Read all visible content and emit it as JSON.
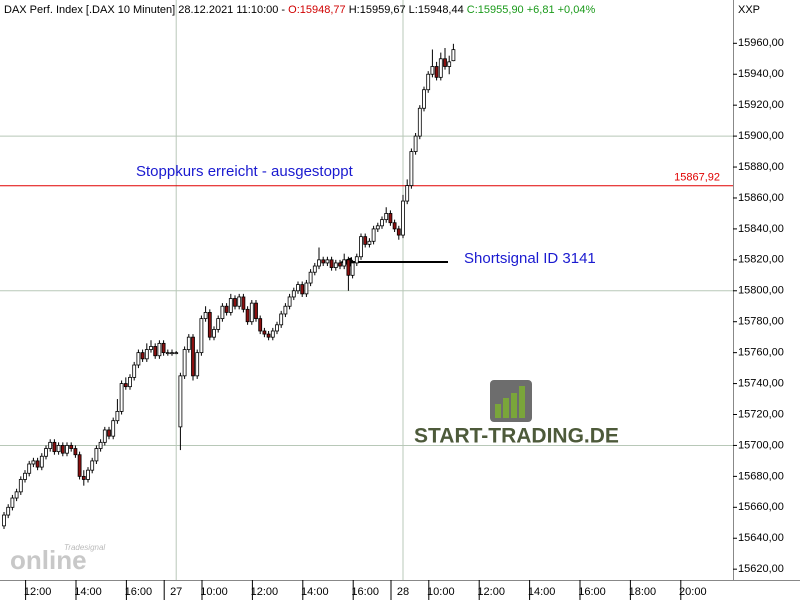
{
  "chart_data": {
    "type": "candlestick",
    "header": {
      "text": "DAX Perf. Index [.DAX  10 Minuten] 28.12.2021 11:10:00 -",
      "open": "O:15948,77",
      "high": "H:15959,67",
      "low": "L:15948,44",
      "change": "C:15955,90 +6,81 +0,04%"
    },
    "axis_title": "XXP",
    "annotations": {
      "stop": "Stoppkurs erreicht - ausgestoppt",
      "signal": "Shortsignal ID 3141"
    },
    "logo": "START-TRADING.DE",
    "watermark": {
      "brand": "Tradesignal",
      "word": "online"
    },
    "stop_line": {
      "value": 15867.92,
      "label": "15867,92",
      "color": "#e00000"
    },
    "up_color": "#ffffff",
    "down_color": "#8b1010",
    "ylim": [
      15613,
      15988
    ],
    "yticks": [
      {
        "value": 15620,
        "label": "15620,00"
      },
      {
        "value": 15640,
        "label": "15640,00"
      },
      {
        "value": 15660,
        "label": "15660,00"
      },
      {
        "value": 15680,
        "label": "15680,00"
      },
      {
        "value": 15700,
        "label": "15700,00"
      },
      {
        "value": 15720,
        "label": "15720,00"
      },
      {
        "value": 15740,
        "label": "15740,00"
      },
      {
        "value": 15760,
        "label": "15760,00"
      },
      {
        "value": 15780,
        "label": "15780,00"
      },
      {
        "value": 15800,
        "label": "15800,00"
      },
      {
        "value": 15820,
        "label": "15820,00"
      },
      {
        "value": 15840,
        "label": "15840,00"
      },
      {
        "value": 15860,
        "label": "15860,00"
      },
      {
        "value": 15880,
        "label": "15880,00"
      },
      {
        "value": 15900,
        "label": "15900,00"
      },
      {
        "value": 15920,
        "label": "15920,00"
      },
      {
        "value": 15940,
        "label": "15940,00"
      },
      {
        "value": 15960,
        "label": "15960,00"
      }
    ],
    "categories": [
      null,
      null,
      null,
      null,
      null,
      null,
      null,
      null,
      "12:00",
      null,
      null,
      null,
      null,
      null,
      null,
      null,
      null,
      null,
      null,
      null,
      "14:00",
      null,
      null,
      null,
      null,
      null,
      null,
      null,
      null,
      null,
      null,
      null,
      "16:00",
      null,
      null,
      null,
      null,
      null,
      null,
      null,
      null,
      "27",
      null,
      null,
      null,
      null,
      null,
      null,
      null,
      null,
      "10:00",
      null,
      null,
      null,
      null,
      null,
      null,
      null,
      null,
      null,
      null,
      null,
      "12:00",
      null,
      null,
      null,
      null,
      null,
      null,
      null,
      null,
      null,
      null,
      null,
      "14:00",
      null,
      null,
      null,
      null,
      null,
      null,
      null,
      null,
      null,
      null,
      null,
      "16:00",
      null,
      null,
      null,
      null,
      null,
      null,
      null,
      null,
      "28",
      null,
      null,
      null,
      null,
      null,
      null,
      null,
      null,
      "10:00",
      null,
      null,
      null,
      null,
      null,
      null,
      null,
      null,
      null,
      null,
      null,
      "12:00",
      null,
      null,
      null,
      null,
      null,
      null,
      null,
      null,
      null,
      null,
      null,
      "14:00",
      null,
      null,
      null,
      null,
      null,
      null,
      null,
      null,
      null,
      null,
      null,
      "16:00",
      null,
      null,
      null,
      null,
      null,
      null,
      null,
      null,
      null,
      null,
      null,
      "18:00",
      null,
      null,
      null,
      null,
      null,
      null,
      null,
      null,
      null,
      null,
      null,
      "20:00",
      null
    ],
    "open": [
      15648,
      15655,
      15660,
      15666,
      15670,
      15678,
      15682,
      15688,
      15690,
      15686,
      15693,
      15698,
      15702,
      15696,
      15700,
      15695,
      15700,
      15698,
      15694,
      15680,
      15678,
      15684,
      15690,
      15698,
      15702,
      15710,
      15706,
      15716,
      15722,
      15740,
      15738,
      15744,
      15752,
      15760,
      15756,
      15762,
      15764,
      15758,
      15766,
      15760,
      15760,
      15760,
      15712,
      15745,
      15762,
      15770,
      15745,
      15760,
      15782,
      15786,
      15770,
      15775,
      15782,
      15790,
      15786,
      15795,
      15790,
      15796,
      15788,
      15780,
      15792,
      15782,
      15774,
      15772,
      15770,
      15774,
      15778,
      15785,
      15790,
      15796,
      15800,
      15804,
      15798,
      15805,
      15812,
      15816,
      15820,
      15818,
      15820,
      15815,
      15818,
      15816,
      15820,
      15810,
      15818,
      15822,
      15835,
      15830,
      15832,
      15840,
      15842,
      15846,
      15850,
      15844,
      15840,
      15836,
      15858,
      15868,
      15890,
      15900,
      15918,
      15930,
      15940,
      15945,
      15938,
      15950,
      15945,
      15948.77,
      null,
      null,
      null,
      null,
      null,
      null,
      null,
      null,
      null,
      null,
      null,
      null,
      null,
      null,
      null,
      null,
      null,
      null,
      null,
      null,
      null,
      null,
      null,
      null,
      null,
      null,
      null,
      null,
      null,
      null,
      null,
      null,
      null,
      null,
      null,
      null,
      null,
      null,
      null,
      null,
      null,
      null,
      null,
      null,
      null,
      null,
      null,
      null,
      null,
      null,
      null,
      null,
      null,
      null,
      null,
      null,
      null,
      null
    ],
    "high": [
      15657,
      15662,
      15668,
      15672,
      15680,
      15684,
      15690,
      15692,
      15692,
      15695,
      15700,
      15704,
      15704,
      15702,
      15702,
      15702,
      15702,
      15700,
      15696,
      15684,
      15686,
      15692,
      15700,
      15704,
      15712,
      15712,
      15718,
      15730,
      15742,
      15744,
      15746,
      15754,
      15762,
      15762,
      15766,
      15768,
      15766,
      15768,
      15768,
      15762,
      15762,
      15761,
      15747,
      15764,
      15772,
      15772,
      15762,
      15784,
      15790,
      15788,
      15777,
      15784,
      15792,
      15792,
      15798,
      15797,
      15798,
      15798,
      15790,
      15794,
      15794,
      15784,
      15776,
      15774,
      15776,
      15780,
      15787,
      15792,
      15798,
      15802,
      15806,
      15806,
      15807,
      15814,
      15818,
      15828,
      15822,
      15822,
      15822,
      15820,
      15820,
      15824,
      15822,
      15820,
      15824,
      15837,
      15837,
      15834,
      15842,
      15844,
      15848,
      15854,
      15852,
      15846,
      15842,
      15862,
      15872,
      15892,
      15902,
      15920,
      15932,
      15942,
      15956,
      15948,
      15954,
      15957,
      15952,
      15959.67,
      null,
      null,
      null,
      null,
      null,
      null,
      null,
      null,
      null,
      null,
      null,
      null,
      null,
      null,
      null,
      null,
      null,
      null,
      null,
      null,
      null,
      null,
      null,
      null,
      null,
      null,
      null,
      null,
      null,
      null,
      null,
      null,
      null,
      null,
      null,
      null,
      null,
      null,
      null,
      null,
      null,
      null,
      null,
      null,
      null,
      null,
      null,
      null,
      null,
      null,
      null,
      null,
      null,
      null,
      null,
      null,
      null,
      null
    ],
    "low": [
      15646,
      15653,
      15658,
      15664,
      15668,
      15676,
      15680,
      15686,
      15684,
      15684,
      15691,
      15696,
      15694,
      15694,
      15693,
      15693,
      15696,
      15692,
      15678,
      15674,
      15676,
      15682,
      15688,
      15696,
      15700,
      15704,
      15704,
      15714,
      15720,
      15736,
      15736,
      15742,
      15750,
      15754,
      15754,
      15760,
      15756,
      15756,
      15758,
      15758,
      15758,
      15759,
      15697,
      15743,
      15760,
      15742,
      15743,
      15758,
      15780,
      15768,
      15768,
      15773,
      15780,
      15784,
      15784,
      15788,
      15788,
      15786,
      15778,
      15778,
      15780,
      15772,
      15770,
      15768,
      15768,
      15772,
      15776,
      15783,
      15788,
      15794,
      15798,
      15796,
      15796,
      15803,
      15810,
      15814,
      15816,
      15816,
      15813,
      15813,
      15814,
      15814,
      15800,
      15808,
      15816,
      15820,
      15828,
      15828,
      15830,
      15838,
      15840,
      15844,
      15842,
      15838,
      15833,
      15834,
      15856,
      15866,
      15888,
      15898,
      15916,
      15928,
      15938,
      15936,
      15936,
      15943,
      15940,
      15948.44,
      null,
      null,
      null,
      null,
      null,
      null,
      null,
      null,
      null,
      null,
      null,
      null,
      null,
      null,
      null,
      null,
      null,
      null,
      null,
      null,
      null,
      null,
      null,
      null,
      null,
      null,
      null,
      null,
      null,
      null,
      null,
      null,
      null,
      null,
      null,
      null,
      null,
      null,
      null,
      null,
      null,
      null,
      null,
      null,
      null,
      null,
      null,
      null,
      null,
      null,
      null,
      null,
      null,
      null,
      null,
      null,
      null,
      null
    ],
    "close": [
      15655,
      15660,
      15666,
      15670,
      15678,
      15682,
      15688,
      15690,
      15686,
      15693,
      15698,
      15702,
      15696,
      15700,
      15695,
      15700,
      15698,
      15694,
      15680,
      15678,
      15684,
      15690,
      15698,
      15702,
      15710,
      15706,
      15716,
      15722,
      15740,
      15738,
      15744,
      15752,
      15760,
      15756,
      15762,
      15764,
      15758,
      15766,
      15760,
      15760,
      15760,
      15760,
      15745,
      15762,
      15770,
      15745,
      15760,
      15782,
      15786,
      15770,
      15775,
      15782,
      15790,
      15786,
      15795,
      15790,
      15796,
      15788,
      15780,
      15792,
      15782,
      15774,
      15772,
      15770,
      15774,
      15778,
      15785,
      15790,
      15796,
      15800,
      15804,
      15798,
      15805,
      15812,
      15816,
      15820,
      15818,
      15820,
      15815,
      15818,
      15816,
      15820,
      15810,
      15818,
      15822,
      15835,
      15830,
      15832,
      15840,
      15842,
      15846,
      15850,
      15844,
      15840,
      15836,
      15858,
      15868,
      15890,
      15900,
      15918,
      15930,
      15940,
      15945,
      15938,
      15950,
      15945,
      15948,
      15955.9,
      null,
      null,
      null,
      null,
      null,
      null,
      null,
      null,
      null,
      null,
      null,
      null,
      null,
      null,
      null,
      null,
      null,
      null,
      null,
      null,
      null,
      null,
      null,
      null,
      null,
      null,
      null,
      null,
      null,
      null,
      null,
      null,
      null,
      null,
      null,
      null,
      null,
      null,
      null,
      null,
      null,
      null,
      null,
      null,
      null,
      null,
      null,
      null,
      null,
      null,
      null,
      null,
      null,
      null,
      null,
      null,
      null,
      null
    ]
  }
}
